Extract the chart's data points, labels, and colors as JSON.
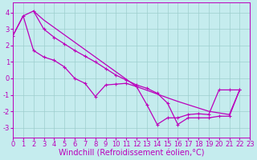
{
  "background_color": "#c5ecee",
  "grid_color": "#9dcece",
  "line_color": "#bb00bb",
  "xlabel": "Windchill (Refroidissement éolien,°C)",
  "xlim": [
    0,
    23
  ],
  "ylim": [
    -3.6,
    4.6
  ],
  "yticks": [
    -3,
    -2,
    -1,
    0,
    1,
    2,
    3,
    4
  ],
  "xticks": [
    0,
    1,
    2,
    3,
    4,
    5,
    6,
    7,
    8,
    9,
    10,
    11,
    12,
    13,
    14,
    15,
    16,
    17,
    18,
    19,
    20,
    21,
    22,
    23
  ],
  "line_smooth_x": [
    0,
    1,
    2,
    3,
    4,
    5,
    6,
    7,
    8,
    9,
    10,
    11,
    12,
    13,
    14,
    15,
    16,
    17,
    18,
    19,
    20,
    21,
    22
  ],
  "line_smooth_y": [
    2.6,
    3.8,
    4.1,
    3.55,
    3.1,
    2.65,
    2.2,
    1.75,
    1.3,
    0.85,
    0.4,
    -0.05,
    -0.5,
    -0.72,
    -0.95,
    -1.18,
    -1.4,
    -1.6,
    -1.8,
    -2.0,
    -2.1,
    -2.2,
    -0.7
  ],
  "line_zigzag_x": [
    0,
    1,
    2,
    3,
    4,
    5,
    6,
    7,
    8,
    9,
    10,
    11,
    12,
    13,
    14,
    15,
    16,
    17,
    18,
    19,
    20,
    21,
    22
  ],
  "line_zigzag_y": [
    2.6,
    3.8,
    1.7,
    1.3,
    1.1,
    0.7,
    0.0,
    -0.3,
    -1.1,
    -0.4,
    -0.35,
    -0.3,
    -0.5,
    -1.6,
    -2.8,
    -2.4,
    -2.4,
    -2.2,
    -2.15,
    -2.2,
    -0.7,
    -0.7,
    -0.7
  ],
  "line_lower_x": [
    2,
    3,
    4,
    5,
    6,
    7,
    8,
    9,
    10,
    11,
    12,
    13,
    14,
    15,
    16,
    17,
    18,
    19,
    20,
    21,
    22
  ],
  "line_lower_y": [
    4.1,
    3.0,
    2.5,
    2.1,
    1.7,
    1.35,
    1.0,
    0.6,
    0.2,
    -0.1,
    -0.4,
    -0.6,
    -0.9,
    -1.5,
    -2.8,
    -2.4,
    -2.4,
    -2.4,
    -2.3,
    -2.3,
    -0.7
  ],
  "xlabel_fontsize": 7,
  "tick_fontsize": 6,
  "linewidth": 0.9,
  "markersize": 3.0
}
